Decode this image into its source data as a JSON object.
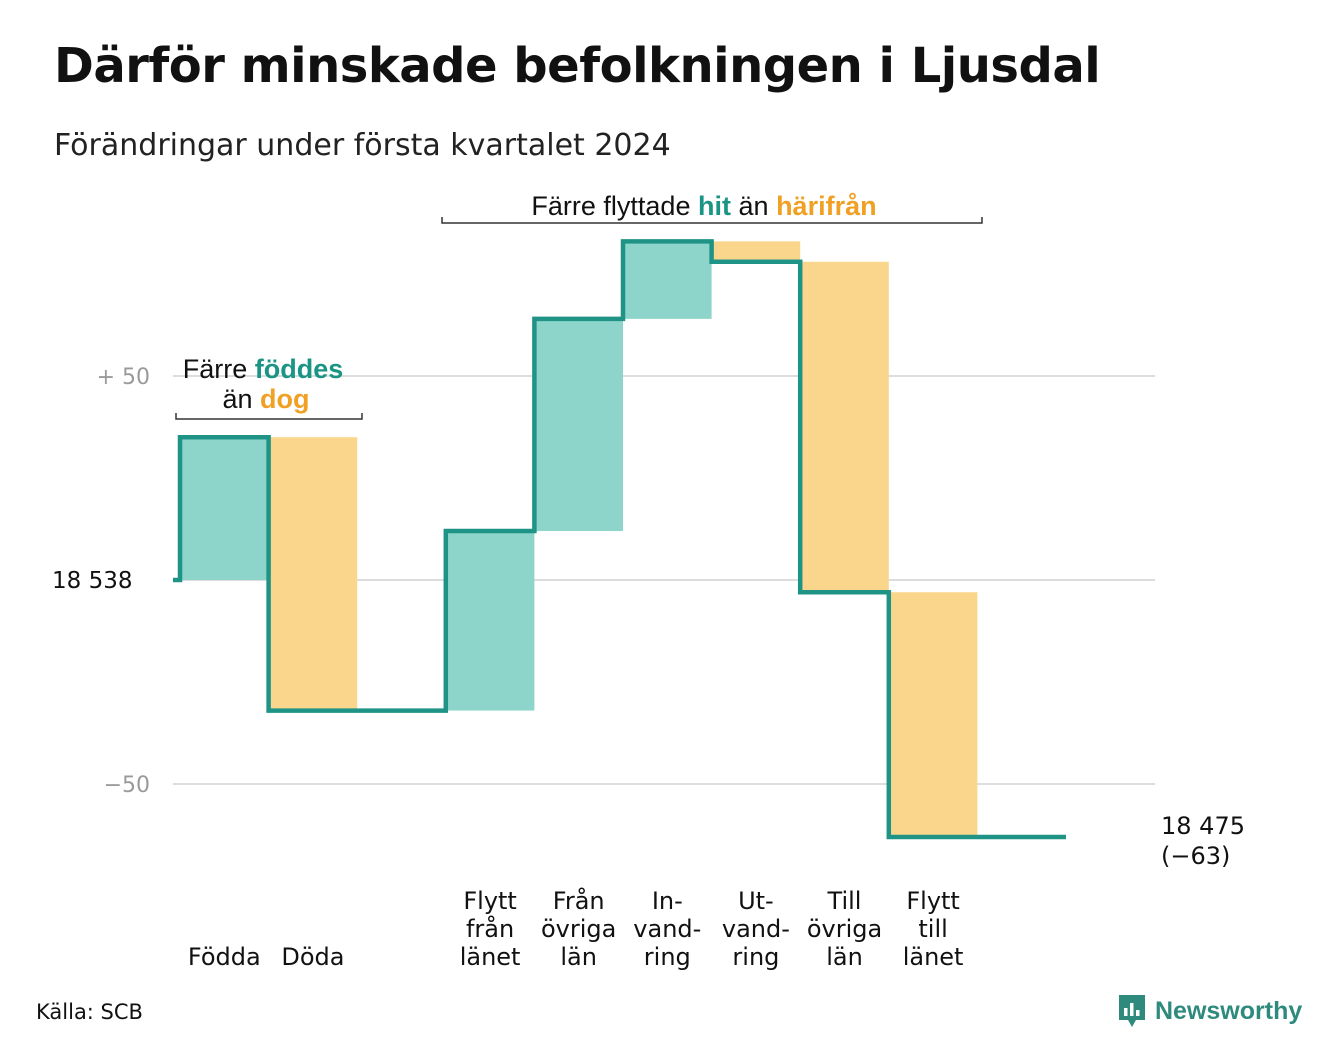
{
  "title": "Därför minskade befolkningen i Ljusdal",
  "subtitle": "Förändringar under första kvartalet 2024",
  "source": "Källa: SCB",
  "brand": "Newsworthy",
  "colors": {
    "increase": "#8dd5cb",
    "decrease": "#fad68c",
    "line": "#1f9486",
    "accent_teal": "#1a9485",
    "accent_orange": "#f0a124",
    "grid": "#dddddd"
  },
  "annotations": {
    "births": {
      "pre": "Färre",
      "hit": "föddes",
      "line2_pre": "än",
      "away": "dog"
    },
    "migration": {
      "pre": "Färre flyttade",
      "hit": "hit",
      "mid": "än",
      "away": "härifrån"
    }
  },
  "chart_data": {
    "type": "waterfall",
    "start_value": 18538,
    "start_label": "18  538",
    "end_value": 18475,
    "end_label": "18 475",
    "end_change_label": "(−63)",
    "y_ticks": [
      {
        "value": 50,
        "label": "+  50"
      },
      {
        "value": 0,
        "label": ""
      },
      {
        "value": -50,
        "label": "−50"
      }
    ],
    "y_range": [
      -65,
      83
    ],
    "grid": true,
    "steps": [
      {
        "label_lines": [
          "Födda"
        ],
        "change": 35
      },
      {
        "label_lines": [
          "Döda"
        ],
        "change": -67
      },
      {
        "label_lines": [
          ""
        ],
        "change": 0
      },
      {
        "label_lines": [
          "Flytt",
          "från",
          "länet"
        ],
        "change": 44
      },
      {
        "label_lines": [
          "Från",
          "övriga",
          "län"
        ],
        "change": 52
      },
      {
        "label_lines": [
          "In-",
          "vand-",
          "ring"
        ],
        "change": 19
      },
      {
        "label_lines": [
          "Ut-",
          "vand-",
          "ring"
        ],
        "change": -5
      },
      {
        "label_lines": [
          "Till",
          "övriga",
          "län"
        ],
        "change": -81
      },
      {
        "label_lines": [
          "Flytt",
          "till",
          "länet"
        ],
        "change": -60
      },
      {
        "label_lines": [
          ""
        ],
        "change": 0
      }
    ]
  }
}
